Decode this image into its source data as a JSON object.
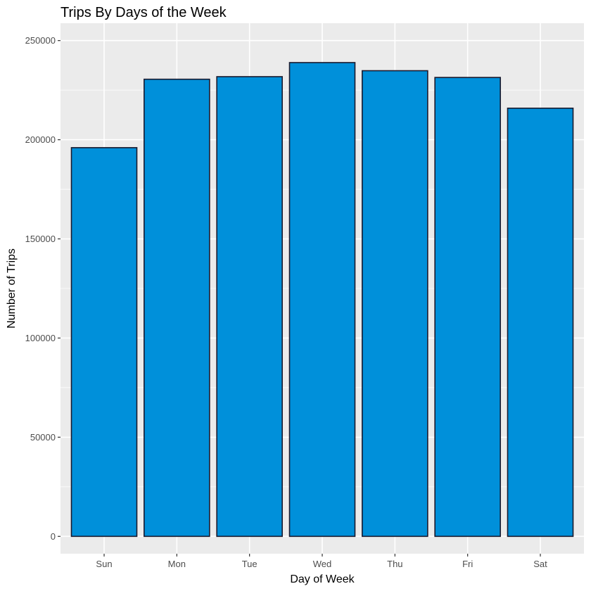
{
  "chart_data": {
    "type": "bar",
    "title": "Trips By Days of the Week",
    "xlabel": "Day of Week",
    "ylabel": "Number of Trips",
    "categories": [
      "Sun",
      "Mon",
      "Tue",
      "Wed",
      "Thu",
      "Fri",
      "Sat"
    ],
    "values": [
      196000,
      230500,
      231800,
      238900,
      234800,
      231400,
      215900
    ],
    "ylim": [
      -8750,
      258750
    ],
    "yticks": [
      0,
      50000,
      100000,
      150000,
      200000,
      250000
    ],
    "ytick_labels": [
      "0",
      "50000",
      "100000",
      "150000",
      "200000",
      "250000"
    ],
    "grid": true,
    "bar_color": "#0090DA",
    "bar_outline": "#1a1a2e",
    "panel_background": "#EBEBEB",
    "gridline_color": "#FFFFFF"
  }
}
